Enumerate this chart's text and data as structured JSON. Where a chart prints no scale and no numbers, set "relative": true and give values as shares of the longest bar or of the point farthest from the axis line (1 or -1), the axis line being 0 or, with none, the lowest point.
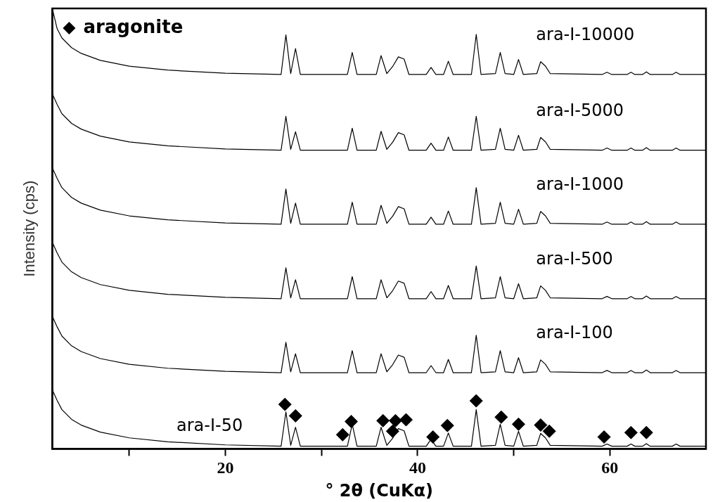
{
  "chart_data": {
    "type": "line",
    "xlabel": "° 2θ (CuKα)",
    "ylabel": "Intensity (cps)",
    "relative": true,
    "legend": "top left",
    "xlim": [
      2,
      70
    ],
    "xticks": [
      {
        "value": 10,
        "label": null
      },
      20,
      {
        "value": 30,
        "label": null
      },
      40,
      {
        "value": 50,
        "label": null
      },
      60
    ],
    "x": [
      2,
      2.5,
      3,
      4,
      5,
      7,
      10,
      14,
      20,
      25.8,
      26.3,
      26.8,
      27.3,
      27.8,
      32.7,
      33.2,
      33.7,
      35.7,
      36.2,
      36.8,
      37.4,
      38.0,
      38.6,
      39.1,
      40.9,
      41.4,
      41.9,
      42.7,
      43.2,
      43.7,
      45.6,
      46.1,
      46.6,
      48.1,
      48.6,
      49.1,
      50.0,
      50.5,
      51.0,
      52.4,
      52.8,
      53.3,
      53.8,
      59.2,
      59.7,
      60.2,
      61.8,
      62.2,
      62.6,
      63.4,
      63.8,
      64.2,
      66.5,
      66.9,
      67.3,
      70
    ],
    "series": [
      {
        "name": "ara-I-10000",
        "color": "#000000",
        "values": [
          1.0,
          0.954,
          0.933,
          0.911,
          0.898,
          0.882,
          0.869,
          0.86,
          0.853,
          0.85,
          0.94,
          0.852,
          0.909,
          0.85,
          0.85,
          0.9,
          0.85,
          0.85,
          0.893,
          0.852,
          0.868,
          0.89,
          0.885,
          0.85,
          0.85,
          0.866,
          0.85,
          0.85,
          0.88,
          0.85,
          0.85,
          0.941,
          0.85,
          0.852,
          0.9,
          0.852,
          0.85,
          0.884,
          0.85,
          0.852,
          0.879,
          0.869,
          0.852,
          0.85,
          0.855,
          0.85,
          0.85,
          0.855,
          0.85,
          0.85,
          0.856,
          0.85,
          0.85,
          0.855,
          0.85,
          0.85
        ]
      },
      {
        "name": "ara-I-5000",
        "color": "#000000",
        "values": [
          0.806,
          0.782,
          0.761,
          0.739,
          0.726,
          0.71,
          0.697,
          0.688,
          0.681,
          0.678,
          0.755,
          0.68,
          0.72,
          0.678,
          0.678,
          0.728,
          0.678,
          0.678,
          0.721,
          0.68,
          0.696,
          0.718,
          0.713,
          0.678,
          0.678,
          0.694,
          0.678,
          0.678,
          0.708,
          0.678,
          0.678,
          0.755,
          0.678,
          0.68,
          0.728,
          0.68,
          0.678,
          0.712,
          0.678,
          0.68,
          0.707,
          0.697,
          0.68,
          0.678,
          0.683,
          0.678,
          0.678,
          0.683,
          0.678,
          0.678,
          0.684,
          0.678,
          0.678,
          0.683,
          0.678,
          0.678
        ]
      },
      {
        "name": "ara-I-1000",
        "color": "#000000",
        "values": [
          0.638,
          0.614,
          0.593,
          0.571,
          0.558,
          0.542,
          0.529,
          0.52,
          0.513,
          0.51,
          0.59,
          0.512,
          0.558,
          0.51,
          0.51,
          0.56,
          0.51,
          0.51,
          0.553,
          0.512,
          0.528,
          0.55,
          0.545,
          0.51,
          0.51,
          0.526,
          0.51,
          0.51,
          0.54,
          0.51,
          0.51,
          0.593,
          0.51,
          0.512,
          0.56,
          0.512,
          0.51,
          0.544,
          0.51,
          0.512,
          0.539,
          0.529,
          0.512,
          0.51,
          0.515,
          0.51,
          0.51,
          0.515,
          0.51,
          0.51,
          0.516,
          0.51,
          0.51,
          0.515,
          0.51,
          0.51
        ]
      },
      {
        "name": "ara-I-500",
        "color": "#000000",
        "values": [
          0.469,
          0.445,
          0.424,
          0.402,
          0.389,
          0.373,
          0.36,
          0.351,
          0.344,
          0.341,
          0.411,
          0.343,
          0.384,
          0.341,
          0.341,
          0.391,
          0.341,
          0.341,
          0.384,
          0.343,
          0.359,
          0.381,
          0.376,
          0.341,
          0.341,
          0.357,
          0.341,
          0.341,
          0.371,
          0.341,
          0.341,
          0.415,
          0.341,
          0.343,
          0.391,
          0.343,
          0.341,
          0.375,
          0.341,
          0.343,
          0.37,
          0.36,
          0.343,
          0.341,
          0.346,
          0.341,
          0.341,
          0.346,
          0.341,
          0.341,
          0.347,
          0.341,
          0.341,
          0.346,
          0.341,
          0.341
        ]
      },
      {
        "name": "ara-I-100",
        "color": "#000000",
        "values": [
          0.301,
          0.277,
          0.256,
          0.234,
          0.221,
          0.205,
          0.192,
          0.183,
          0.176,
          0.173,
          0.242,
          0.175,
          0.216,
          0.173,
          0.173,
          0.223,
          0.173,
          0.173,
          0.216,
          0.175,
          0.191,
          0.213,
          0.208,
          0.173,
          0.173,
          0.189,
          0.173,
          0.173,
          0.203,
          0.173,
          0.173,
          0.258,
          0.173,
          0.175,
          0.223,
          0.175,
          0.173,
          0.207,
          0.173,
          0.175,
          0.202,
          0.192,
          0.175,
          0.173,
          0.178,
          0.173,
          0.173,
          0.178,
          0.173,
          0.173,
          0.179,
          0.173,
          0.173,
          0.178,
          0.173,
          0.173
        ]
      },
      {
        "name": "ara-I-50",
        "color": "#000000",
        "values": [
          0.134,
          0.11,
          0.089,
          0.067,
          0.054,
          0.038,
          0.025,
          0.016,
          0.009,
          0.006,
          0.084,
          0.008,
          0.049,
          0.006,
          0.006,
          0.056,
          0.006,
          0.006,
          0.049,
          0.008,
          0.024,
          0.046,
          0.041,
          0.006,
          0.006,
          0.022,
          0.006,
          0.006,
          0.036,
          0.006,
          0.006,
          0.089,
          0.006,
          0.008,
          0.056,
          0.008,
          0.006,
          0.04,
          0.006,
          0.008,
          0.035,
          0.025,
          0.008,
          0.006,
          0.011,
          0.006,
          0.006,
          0.011,
          0.006,
          0.006,
          0.012,
          0.006,
          0.006,
          0.011,
          0.006,
          0.006
        ]
      },
      {
        "name": "aragonite",
        "type": "scatter",
        "marker": "diamond",
        "color": "#000000",
        "x": [
          26.2,
          27.3,
          32.2,
          33.1,
          36.4,
          37.4,
          37.7,
          38.8,
          41.6,
          43.1,
          46.1,
          48.7,
          50.5,
          52.8,
          53.7,
          59.4,
          62.2,
          63.8
        ],
        "values": [
          0.101,
          0.075,
          0.032,
          0.062,
          0.064,
          0.04,
          0.064,
          0.066,
          0.027,
          0.053,
          0.109,
          0.072,
          0.056,
          0.054,
          0.04,
          0.027,
          0.037,
          0.037
        ]
      }
    ]
  }
}
